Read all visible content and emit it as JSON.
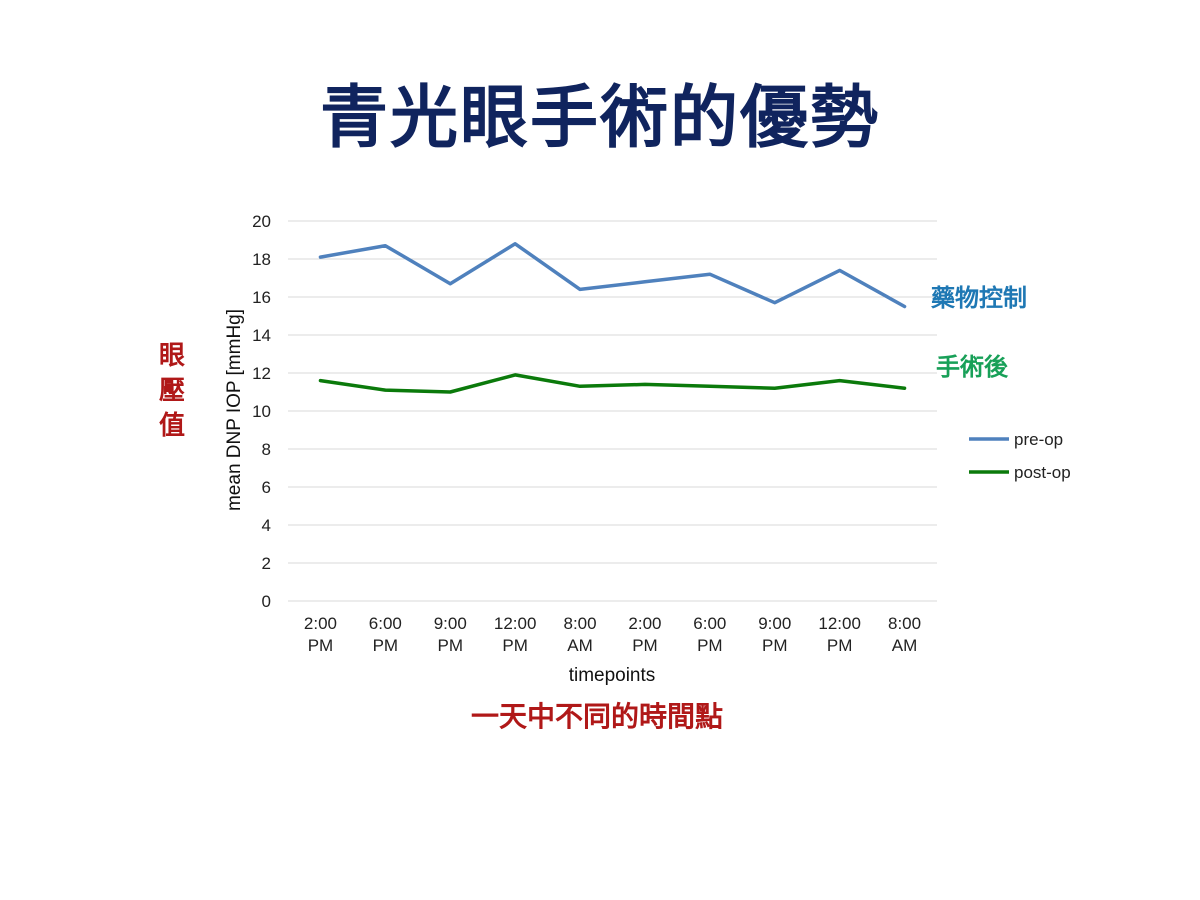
{
  "slide": {
    "title": "青光眼手術的優勢",
    "side_label": [
      "眼",
      "壓",
      "值"
    ],
    "bottom_caption": "一天中不同的時間點"
  },
  "annotations": {
    "pre_op_note": "藥物控制",
    "post_op_note": "手術後",
    "pre_op_color": "#1f78b4",
    "post_op_color": "#18a058",
    "side_label_color": "#b01818",
    "caption_color": "#b01818"
  },
  "chart_data": {
    "type": "line",
    "categories": [
      [
        "2:00",
        "PM"
      ],
      [
        "6:00",
        "PM"
      ],
      [
        "9:00",
        "PM"
      ],
      [
        "12:00",
        "PM"
      ],
      [
        "8:00",
        "AM"
      ],
      [
        "2:00",
        "PM"
      ],
      [
        "6:00",
        "PM"
      ],
      [
        "9:00",
        "PM"
      ],
      [
        "12:00",
        "PM"
      ],
      [
        "8:00",
        "AM"
      ]
    ],
    "series": [
      {
        "name": "pre-op",
        "color": "#4f81bd",
        "values": [
          18.1,
          18.7,
          16.7,
          18.8,
          16.4,
          16.8,
          17.2,
          15.7,
          17.4,
          15.5
        ]
      },
      {
        "name": "post-op",
        "color": "#0b7a0b",
        "values": [
          11.6,
          11.1,
          11.0,
          11.9,
          11.3,
          11.4,
          11.3,
          11.2,
          11.6,
          11.2
        ]
      }
    ],
    "xlabel": "timepoints",
    "ylabel": "mean DNP IOP [mmHg]",
    "ylim": [
      0,
      20
    ],
    "yticks": [
      0,
      2,
      4,
      6,
      8,
      10,
      12,
      14,
      16,
      18,
      20
    ],
    "grid": true,
    "legend_position": "right"
  }
}
